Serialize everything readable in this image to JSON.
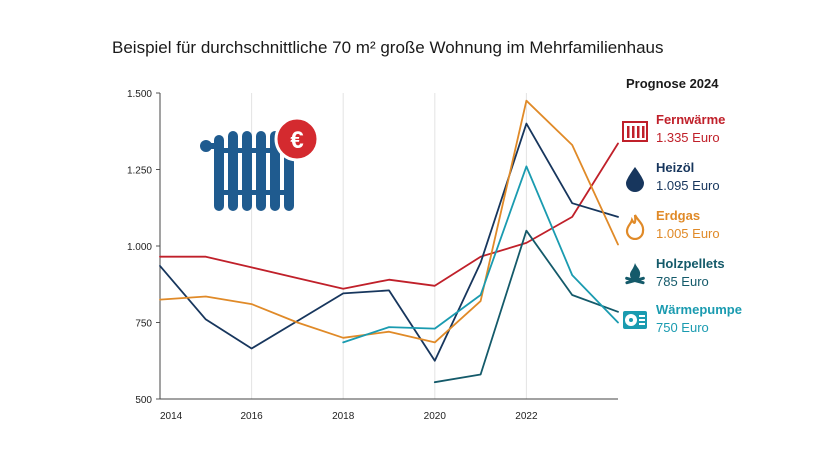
{
  "chart_data": {
    "type": "line",
    "title": "Beispiel für durchschnittliche 70 m² große Wohnung im Mehrfamilienhaus",
    "xlabel": "",
    "ylabel": "",
    "xlim": [
      2014,
      2024
    ],
    "ylim": [
      500,
      1500
    ],
    "x_ticks": [
      2014,
      2016,
      2018,
      2020,
      2022
    ],
    "y_ticks": [
      500,
      750,
      1000,
      1250,
      1500
    ],
    "x_tick_labels": [
      "2014",
      "2016",
      "2018",
      "2020",
      "2022"
    ],
    "y_tick_labels": [
      "500",
      "750",
      "1.000",
      "1.250",
      "1.500"
    ],
    "grid": "vertical",
    "legend_title": "Prognose 2024",
    "legend_position": "right",
    "series": [
      {
        "name": "Fernwärme",
        "label": "1.335 Euro",
        "color": "#c0202a",
        "icon": "radiator-icon",
        "x": [
          2014,
          2015,
          2016,
          2017,
          2018,
          2019,
          2020,
          2021,
          2022,
          2023,
          2024
        ],
        "y": [
          965,
          965,
          930,
          895,
          860,
          890,
          870,
          965,
          1010,
          1095,
          1335
        ]
      },
      {
        "name": "Heizöl",
        "label": "1.095 Euro",
        "color": "#17365d",
        "icon": "drop-icon",
        "x": [
          2014,
          2015,
          2016,
          2017,
          2018,
          2019,
          2020,
          2021,
          2022,
          2023,
          2024
        ],
        "y": [
          935,
          760,
          665,
          755,
          845,
          855,
          625,
          945,
          1400,
          1140,
          1095
        ]
      },
      {
        "name": "Erdgas",
        "label": "1.005 Euro",
        "color": "#e08a28",
        "icon": "flame-icon",
        "x": [
          2014,
          2015,
          2016,
          2017,
          2018,
          2019,
          2020,
          2021,
          2022,
          2023,
          2024
        ],
        "y": [
          825,
          835,
          810,
          750,
          700,
          720,
          685,
          820,
          1475,
          1330,
          1005
        ]
      },
      {
        "name": "Holzpellets",
        "label": "785 Euro",
        "color": "#145a6a",
        "icon": "pellets-icon",
        "x": [
          2020,
          2021,
          2022,
          2023,
          2024
        ],
        "y": [
          555,
          580,
          1050,
          840,
          785
        ]
      },
      {
        "name": "Wärmepumpe",
        "label": "750 Euro",
        "color": "#1a9bb0",
        "icon": "heatpump-icon",
        "x": [
          2018,
          2019,
          2020,
          2021,
          2022,
          2023,
          2024
        ],
        "y": [
          685,
          735,
          730,
          840,
          1260,
          905,
          750
        ]
      }
    ]
  },
  "decoration": {
    "radiator_icon": "radiator-icon",
    "euro_badge_icon": "euro-badge-icon",
    "euro_symbol": "€"
  }
}
